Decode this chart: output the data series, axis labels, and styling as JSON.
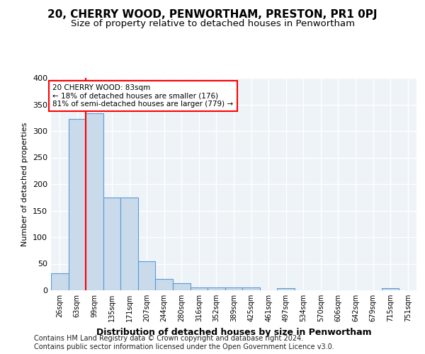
{
  "title1": "20, CHERRY WOOD, PENWORTHAM, PRESTON, PR1 0PJ",
  "title2": "Size of property relative to detached houses in Penwortham",
  "xlabel": "Distribution of detached houses by size in Penwortham",
  "ylabel": "Number of detached properties",
  "footer": "Contains HM Land Registry data © Crown copyright and database right 2024.\nContains public sector information licensed under the Open Government Licence v3.0.",
  "categories": [
    "26sqm",
    "63sqm",
    "99sqm",
    "135sqm",
    "171sqm",
    "207sqm",
    "244sqm",
    "280sqm",
    "316sqm",
    "352sqm",
    "389sqm",
    "425sqm",
    "461sqm",
    "497sqm",
    "534sqm",
    "570sqm",
    "606sqm",
    "642sqm",
    "679sqm",
    "715sqm",
    "751sqm"
  ],
  "values": [
    32,
    323,
    333,
    175,
    175,
    55,
    22,
    13,
    5,
    5,
    5,
    5,
    0,
    4,
    0,
    0,
    0,
    0,
    0,
    4,
    0
  ],
  "bar_color": "#c9daea",
  "bar_edge_color": "#5b9bd5",
  "annotation_text": "20 CHERRY WOOD: 83sqm\n← 18% of detached houses are smaller (176)\n81% of semi-detached houses are larger (779) →",
  "annotation_box_color": "white",
  "annotation_box_edge": "red",
  "line_color": "red",
  "ylim": [
    0,
    400
  ],
  "background_color": "#eef3f8",
  "grid_color": "white",
  "title1_fontsize": 11,
  "title2_fontsize": 9.5,
  "footer_fontsize": 7
}
